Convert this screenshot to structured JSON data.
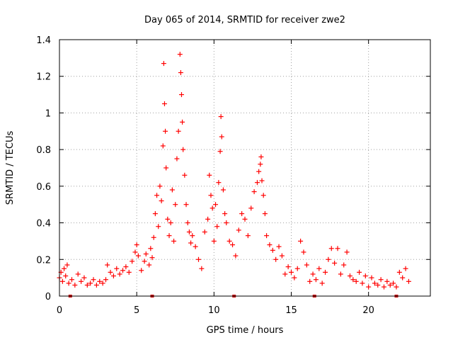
{
  "chart_data": {
    "type": "scatter",
    "title": "Day 065 of 2014, SRMTID for receiver zwe2",
    "xlabel": "GPS time / hours",
    "ylabel": "SRMTID / TECUs",
    "xlim": [
      0,
      24
    ],
    "ylim": [
      0,
      1.4
    ],
    "xticks": [
      0,
      5,
      10,
      15,
      20
    ],
    "xtick_labels": [
      "0",
      "5",
      "10",
      "15",
      "20"
    ],
    "yticks": [
      0,
      0.2,
      0.4,
      0.6,
      0.8,
      1.0,
      1.2,
      1.4
    ],
    "ytick_labels": [
      "0",
      "0.2",
      "0.4",
      "0.6",
      "0.8",
      "1",
      "1.2",
      "1.4"
    ],
    "grid": true,
    "marker": "+",
    "color": "#ff0000",
    "series": [
      {
        "name": "SRMTID",
        "x": [
          0.0,
          0.1,
          0.2,
          0.3,
          0.4,
          0.5,
          0.6,
          0.8,
          1.0,
          1.2,
          1.4,
          1.6,
          1.8,
          2.0,
          2.2,
          2.4,
          2.6,
          2.8,
          3.0,
          3.1,
          3.3,
          3.5,
          3.7,
          3.9,
          4.1,
          4.3,
          4.5,
          4.7,
          4.9,
          5.0,
          5.1,
          5.3,
          5.5,
          5.6,
          5.8,
          5.9,
          6.0,
          6.1,
          6.2,
          6.3,
          6.4,
          6.5,
          6.6,
          6.7,
          6.75,
          6.8,
          6.85,
          6.9,
          7.0,
          7.1,
          7.2,
          7.3,
          7.4,
          7.5,
          7.6,
          7.7,
          7.8,
          7.85,
          7.9,
          7.95,
          8.0,
          8.1,
          8.2,
          8.3,
          8.4,
          8.5,
          8.6,
          8.8,
          9.0,
          9.2,
          9.4,
          9.6,
          9.7,
          9.8,
          9.9,
          10.0,
          10.1,
          10.2,
          10.3,
          10.4,
          10.45,
          10.5,
          10.6,
          10.7,
          10.8,
          11.0,
          11.2,
          11.4,
          11.6,
          11.8,
          12.0,
          12.2,
          12.4,
          12.6,
          12.8,
          12.9,
          13.0,
          13.05,
          13.1,
          13.2,
          13.3,
          13.4,
          13.6,
          13.8,
          14.0,
          14.2,
          14.4,
          14.6,
          14.8,
          15.0,
          15.2,
          15.4,
          15.6,
          15.8,
          16.0,
          16.2,
          16.4,
          16.6,
          16.8,
          17.0,
          17.2,
          17.4,
          17.6,
          17.8,
          18.0,
          18.2,
          18.4,
          18.6,
          18.8,
          19.0,
          19.2,
          19.4,
          19.6,
          19.8,
          20.0,
          20.2,
          20.4,
          20.6,
          20.8,
          21.0,
          21.2,
          21.4,
          21.6,
          21.8,
          22.0,
          22.2,
          22.4,
          22.6
        ],
        "y": [
          0.1,
          0.13,
          0.08,
          0.15,
          0.11,
          0.17,
          0.07,
          0.09,
          0.06,
          0.12,
          0.08,
          0.1,
          0.06,
          0.07,
          0.09,
          0.06,
          0.08,
          0.07,
          0.09,
          0.17,
          0.13,
          0.11,
          0.15,
          0.12,
          0.14,
          0.16,
          0.13,
          0.19,
          0.24,
          0.28,
          0.22,
          0.14,
          0.19,
          0.23,
          0.17,
          0.26,
          0.21,
          0.32,
          0.45,
          0.55,
          0.38,
          0.6,
          0.52,
          0.82,
          1.27,
          1.05,
          0.9,
          0.7,
          0.42,
          0.33,
          0.4,
          0.58,
          0.3,
          0.5,
          0.75,
          0.9,
          1.32,
          1.22,
          1.1,
          0.95,
          0.8,
          0.66,
          0.5,
          0.4,
          0.35,
          0.29,
          0.33,
          0.27,
          0.2,
          0.15,
          0.35,
          0.42,
          0.66,
          0.55,
          0.48,
          0.3,
          0.5,
          0.38,
          0.62,
          0.79,
          0.98,
          0.87,
          0.58,
          0.45,
          0.4,
          0.3,
          0.28,
          0.22,
          0.36,
          0.45,
          0.42,
          0.33,
          0.48,
          0.57,
          0.62,
          0.68,
          0.72,
          0.76,
          0.63,
          0.55,
          0.45,
          0.33,
          0.28,
          0.25,
          0.2,
          0.27,
          0.22,
          0.12,
          0.16,
          0.13,
          0.1,
          0.15,
          0.3,
          0.24,
          0.17,
          0.08,
          0.12,
          0.09,
          0.15,
          0.07,
          0.13,
          0.2,
          0.26,
          0.18,
          0.26,
          0.12,
          0.17,
          0.24,
          0.11,
          0.09,
          0.08,
          0.13,
          0.07,
          0.11,
          0.05,
          0.1,
          0.07,
          0.06,
          0.09,
          0.05,
          0.08,
          0.06,
          0.07,
          0.05,
          0.13,
          0.1,
          0.15,
          0.08
        ]
      }
    ],
    "gap_markers_x": [
      0.7,
      6.0,
      11.3,
      16.5,
      21.8
    ]
  }
}
